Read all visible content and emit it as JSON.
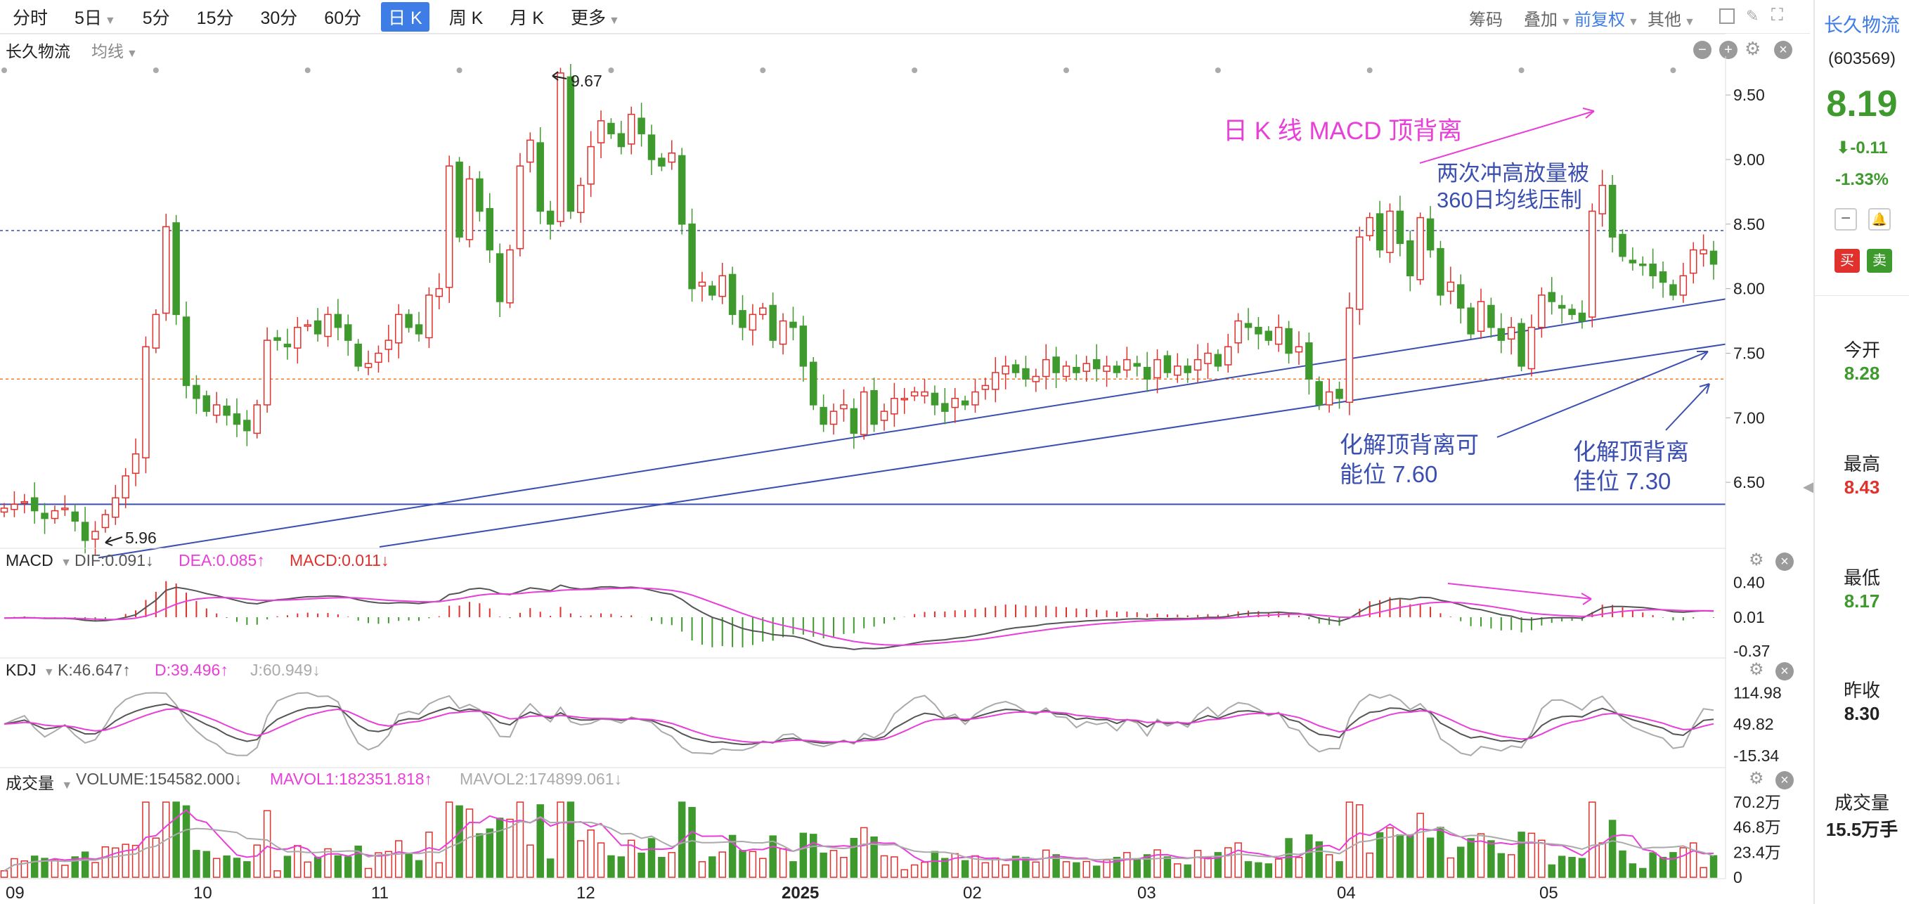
{
  "toolbar": {
    "periods": [
      "分时",
      "5日",
      "5分",
      "15分",
      "30分",
      "60分",
      "日 K",
      "周 K",
      "月 K",
      "更多"
    ],
    "active_period": "日 K",
    "right_items": [
      "筹码",
      "叠加",
      "前复权",
      "其他"
    ]
  },
  "header": {
    "stock_name": "长久物流",
    "ma_selector": "均线"
  },
  "stock_panel": {
    "name": "长久物流",
    "code": "(603569)",
    "price": "8.19",
    "change": "-0.11",
    "change_pct": "-1.33%",
    "buy_label": "买",
    "sell_label": "卖",
    "stats": [
      {
        "label": "今开",
        "value": "8.28",
        "color": "#3f9a2e"
      },
      {
        "label": "最高",
        "value": "8.43",
        "color": "#e0312d"
      },
      {
        "label": "最低",
        "value": "8.17",
        "color": "#3f9a2e"
      },
      {
        "label": "昨收",
        "value": "8.30",
        "color": "#222222"
      },
      {
        "label": "成交量",
        "value": "15.5万手",
        "color": "#222222"
      }
    ]
  },
  "colors": {
    "up": "#e0312d",
    "down": "#3f9a2e",
    "trendline": "#3b4fb0",
    "annotation_blue": "#3b4fb0",
    "annotation_pink": "#e83fd8",
    "dea": "#e83fd8",
    "dif": "#555555"
  },
  "chart_data": [
    {
      "type": "candlestick",
      "name": "日K",
      "price_axis_ticks": [
        9.5,
        9.0,
        8.5,
        8.0,
        7.5,
        7.0,
        6.5
      ],
      "ylim": [
        6.0,
        9.8
      ],
      "x_tick_labels": [
        "09",
        "10",
        "11",
        "12",
        "2025",
        "02",
        "03",
        "04",
        "05"
      ],
      "high_label": "9.67",
      "low_label": "5.96",
      "reference_lines": [
        8.45,
        7.3
      ],
      "horizontal_support": 6.33,
      "annotations": {
        "top_divergence": "日 K 线 MACD 顶背离",
        "resistance_l1": "两次冲高放量被",
        "resistance_l2": "360日均线压制",
        "resolve1_l1": "化解顶背离可",
        "resolve1_l2": "能位 7.60",
        "resolve2_l1": "化解顶背离",
        "resolve2_l2": "佳位 7.30"
      },
      "closes": [
        6.3,
        6.33,
        6.35,
        6.28,
        6.22,
        6.28,
        6.3,
        6.2,
        6.05,
        6.12,
        6.25,
        6.38,
        6.55,
        6.72,
        7.55,
        7.8,
        8.48,
        7.8,
        7.25,
        7.15,
        7.05,
        7.1,
        7.02,
        6.95,
        6.9,
        7.1,
        7.6,
        7.6,
        7.55,
        7.7,
        7.72,
        7.65,
        7.8,
        7.7,
        7.6,
        7.4,
        7.42,
        7.5,
        7.6,
        7.8,
        7.7,
        7.65,
        7.95,
        8.0,
        8.95,
        8.4,
        8.85,
        8.6,
        8.3,
        7.9,
        8.3,
        8.95,
        9.15,
        8.6,
        8.5,
        9.67,
        8.6,
        8.8,
        9.1,
        9.3,
        9.2,
        9.1,
        9.35,
        9.2,
        9.0,
        8.95,
        9.05,
        8.5,
        8.0,
        8.05,
        7.95,
        8.1,
        7.8,
        7.7,
        7.8,
        7.85,
        7.6,
        7.75,
        7.7,
        7.4,
        7.1,
        6.95,
        7.05,
        7.1,
        6.88,
        7.2,
        6.95,
        7.05,
        7.15,
        7.15,
        7.2,
        7.2,
        7.1,
        7.05,
        7.15,
        7.1,
        7.2,
        7.25,
        7.35,
        7.4,
        7.35,
        7.3,
        7.32,
        7.45,
        7.35,
        7.4,
        7.35,
        7.42,
        7.38,
        7.4,
        7.35,
        7.45,
        7.4,
        7.3,
        7.45,
        7.35,
        7.4,
        7.35,
        7.45,
        7.5,
        7.4,
        7.55,
        7.75,
        7.7,
        7.65,
        7.6,
        7.7,
        7.5,
        7.55,
        7.3,
        7.1,
        7.2,
        7.15,
        7.85,
        8.4,
        8.55,
        8.3,
        8.6,
        8.35,
        8.1,
        8.55,
        8.3,
        7.95,
        8.05,
        7.85,
        7.65,
        7.9,
        7.7,
        7.6,
        7.7,
        7.4,
        7.7,
        7.95,
        7.9,
        7.85,
        7.8,
        7.75,
        8.6,
        8.8,
        8.4,
        8.25,
        8.2,
        8.18,
        8.1,
        8.05,
        7.95,
        8.1,
        8.3,
        8.3,
        8.19
      ]
    },
    {
      "type": "line",
      "name": "MACD",
      "labels": {
        "dif": "DIF:0.091↓",
        "dea": "DEA:0.085↑",
        "macd": "MACD:0.011↓"
      },
      "axis_ticks": [
        "0.40",
        "0.01",
        "-0.37"
      ],
      "ylim": [
        -0.4,
        0.42
      ],
      "annotation_arrow": true
    },
    {
      "type": "line",
      "name": "KDJ",
      "labels": {
        "k": "K:46.647↑",
        "d": "D:39.496↑",
        "j": "J:60.949↓"
      },
      "axis_ticks": [
        "114.98",
        "49.82",
        "-15.34"
      ],
      "ylim": [
        -20,
        120
      ]
    },
    {
      "type": "bar",
      "name": "成交量",
      "labels": {
        "volume": "VOLUME:154582.000↓",
        "mavol1": "MAVOL1:182351.818↑",
        "mavol2": "MAVOL2:174899.061↓"
      },
      "axis_ticks": [
        "70.2万",
        "46.8万",
        "23.4万",
        "0"
      ],
      "ylim": [
        0,
        72
      ]
    }
  ]
}
